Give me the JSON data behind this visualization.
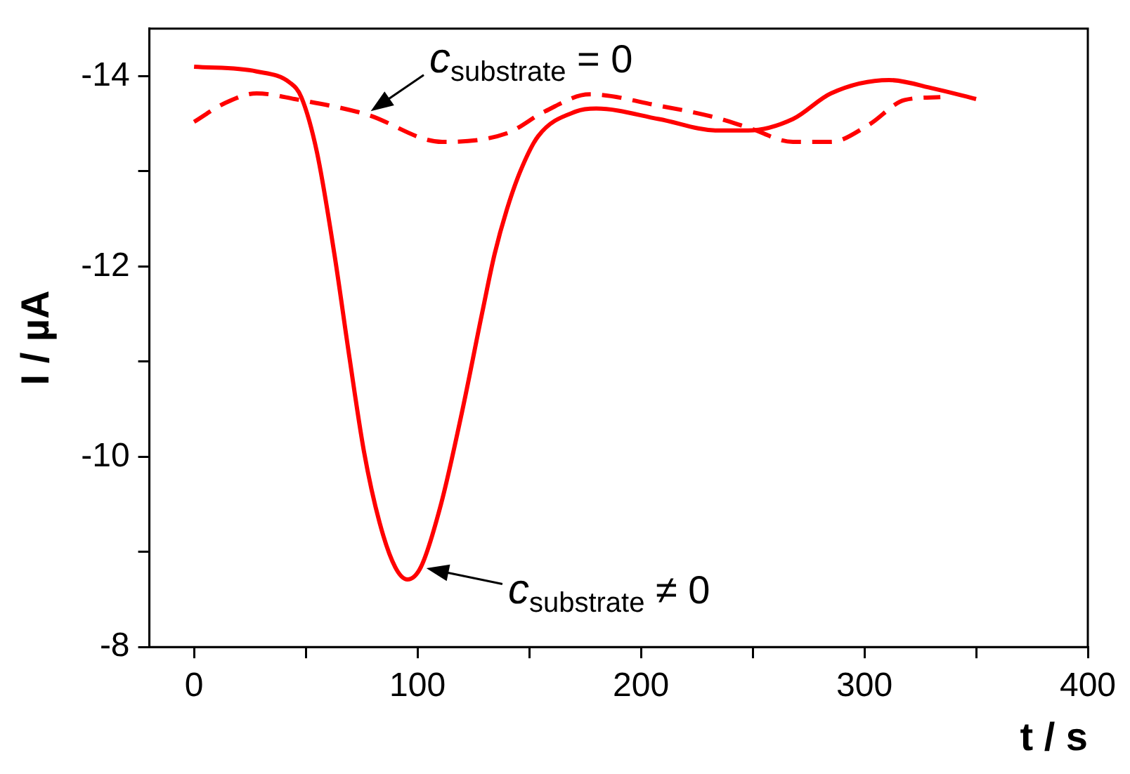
{
  "chart_data": {
    "type": "line",
    "xlabel": "t / s",
    "ylabel": "I / µA",
    "xlim": [
      -20,
      400
    ],
    "xticks": [
      0,
      {
        "value": 50,
        "label": null
      },
      100,
      {
        "value": 150,
        "label": null
      },
      200,
      {
        "value": 250,
        "label": null
      },
      300,
      {
        "value": 350,
        "label": null
      },
      400
    ],
    "ylim": [
      -8,
      -14.5
    ],
    "yticks": [
      -14,
      {
        "value": -13,
        "label": null
      },
      -12,
      {
        "value": -11,
        "label": null
      },
      -10,
      {
        "value": -9,
        "label": null
      },
      -8
    ],
    "grid": false,
    "legend": false,
    "marker": "none",
    "series": [
      {
        "color": "#ff0000",
        "line_style": "solid",
        "x": [
          0,
          28,
          43,
          48,
          55,
          62.8,
          69.5,
          76,
          83,
          90,
          95.5,
          101.5,
          110.5,
          120,
          129,
          134.5,
          140,
          146,
          154,
          171,
          180,
          208,
          234,
          248,
          268,
          285,
          311,
          331,
          350
        ],
        "values": [
          -14.1,
          -14.05,
          -13.93,
          -13.78,
          -13.2,
          -12.13,
          -11.05,
          -10.06,
          -9.31,
          -8.84,
          -8.71,
          -8.84,
          -9.5,
          -10.48,
          -11.52,
          -12.13,
          -12.6,
          -13.0,
          -13.37,
          -13.63,
          -13.66,
          -13.55,
          -13.43,
          -13.43,
          -13.55,
          -13.82,
          -13.96,
          -13.87,
          -13.76
        ]
      },
      {
        "color": "#ff0000",
        "line_style": "dashed",
        "x": [
          0,
          14,
          28,
          45,
          77,
          111,
          140,
          157,
          177,
          208,
          231,
          248,
          268,
          285,
          302,
          318,
          334
        ],
        "values": [
          -13.52,
          -13.72,
          -13.82,
          -13.76,
          -13.6,
          -13.31,
          -13.4,
          -13.63,
          -13.81,
          -13.69,
          -13.58,
          -13.46,
          -13.31,
          -13.31,
          -13.49,
          -13.75,
          -13.78
        ]
      }
    ],
    "annotations": [
      {
        "text": "c$_{substrate}$ = 0",
        "x": 77,
        "y": -13.6
      },
      {
        "text": "c$_{substrate}$ ≠ 0",
        "x": 101.5,
        "y": -8.84
      }
    ]
  }
}
